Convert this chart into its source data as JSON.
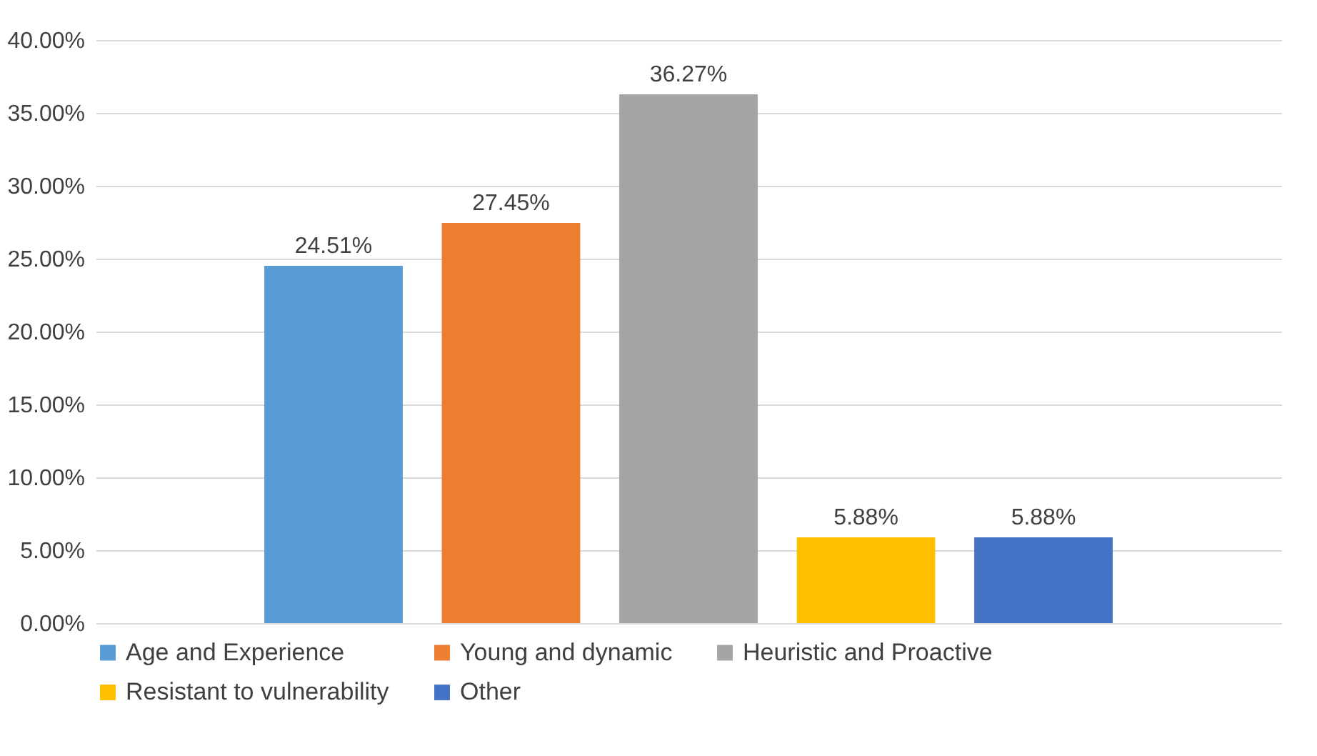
{
  "chart_data": {
    "type": "bar",
    "categories": [
      null
    ],
    "series": [
      {
        "name": "Age and Experience",
        "color": "#5b9bd5",
        "values": [
          24.51
        ]
      },
      {
        "name": "Young and dynamic",
        "color": "#ed7d31",
        "values": [
          27.45
        ]
      },
      {
        "name": "Heuristic and Proactive",
        "color": "#a5a5a5",
        "values": [
          36.27
        ]
      },
      {
        "name": "Resistant to vulnerability",
        "color": "#ffc000",
        "values": [
          5.88
        ]
      },
      {
        "name": "Other",
        "color": "#4472c4",
        "values": [
          5.88
        ]
      }
    ],
    "value_labels": [
      "24.51%",
      "27.45%",
      "36.27%",
      "5.88%",
      "5.88%"
    ],
    "ylim": [
      0,
      40
    ],
    "yticks": [
      {
        "value": 0,
        "label": "0.00%"
      },
      {
        "value": 5,
        "label": "5.00%"
      },
      {
        "value": 10,
        "label": "10.00%"
      },
      {
        "value": 15,
        "label": "15.00%"
      },
      {
        "value": 20,
        "label": "20.00%"
      },
      {
        "value": 25,
        "label": "25.00%"
      },
      {
        "value": 30,
        "label": "30.00%"
      },
      {
        "value": 35,
        "label": "35.00%"
      },
      {
        "value": 40,
        "label": "40.00%"
      }
    ],
    "grid": "y",
    "legend": "bottom"
  }
}
